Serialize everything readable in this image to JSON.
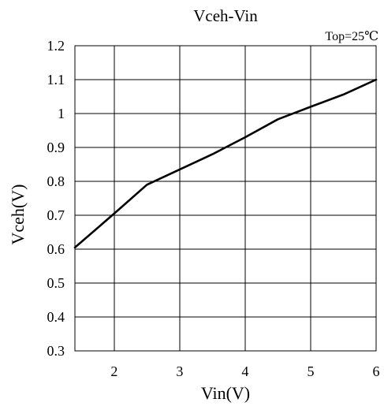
{
  "chart_data": {
    "type": "line",
    "title": "Vceh-Vin",
    "annotation": "Top=25℃",
    "xlabel": "Vin(V)",
    "ylabel": "Vceh(V)",
    "xlim": [
      1.4,
      6
    ],
    "ylim": [
      0.3,
      1.2
    ],
    "x_ticks": [
      2,
      3,
      4,
      5,
      6
    ],
    "x_tick_labels": [
      "2",
      "3",
      "4",
      "5",
      "6"
    ],
    "y_ticks": [
      0.3,
      0.4,
      0.5,
      0.6,
      0.7,
      0.8,
      0.9,
      1.0,
      1.1,
      1.2
    ],
    "y_tick_labels": [
      "0.3",
      "0.4",
      "0.5",
      "0.6",
      "0.7",
      "0.8",
      "0.9",
      "1",
      "1.1",
      "1.2"
    ],
    "grid": true,
    "series": [
      {
        "x": [
          1.4,
          2.0,
          2.5,
          3.0,
          3.5,
          4.0,
          4.5,
          5.0,
          5.5,
          6.0
        ],
        "y": [
          0.605,
          0.705,
          0.79,
          0.835,
          0.88,
          0.93,
          0.983,
          1.02,
          1.056,
          1.1
        ],
        "color": "#000000"
      }
    ]
  }
}
